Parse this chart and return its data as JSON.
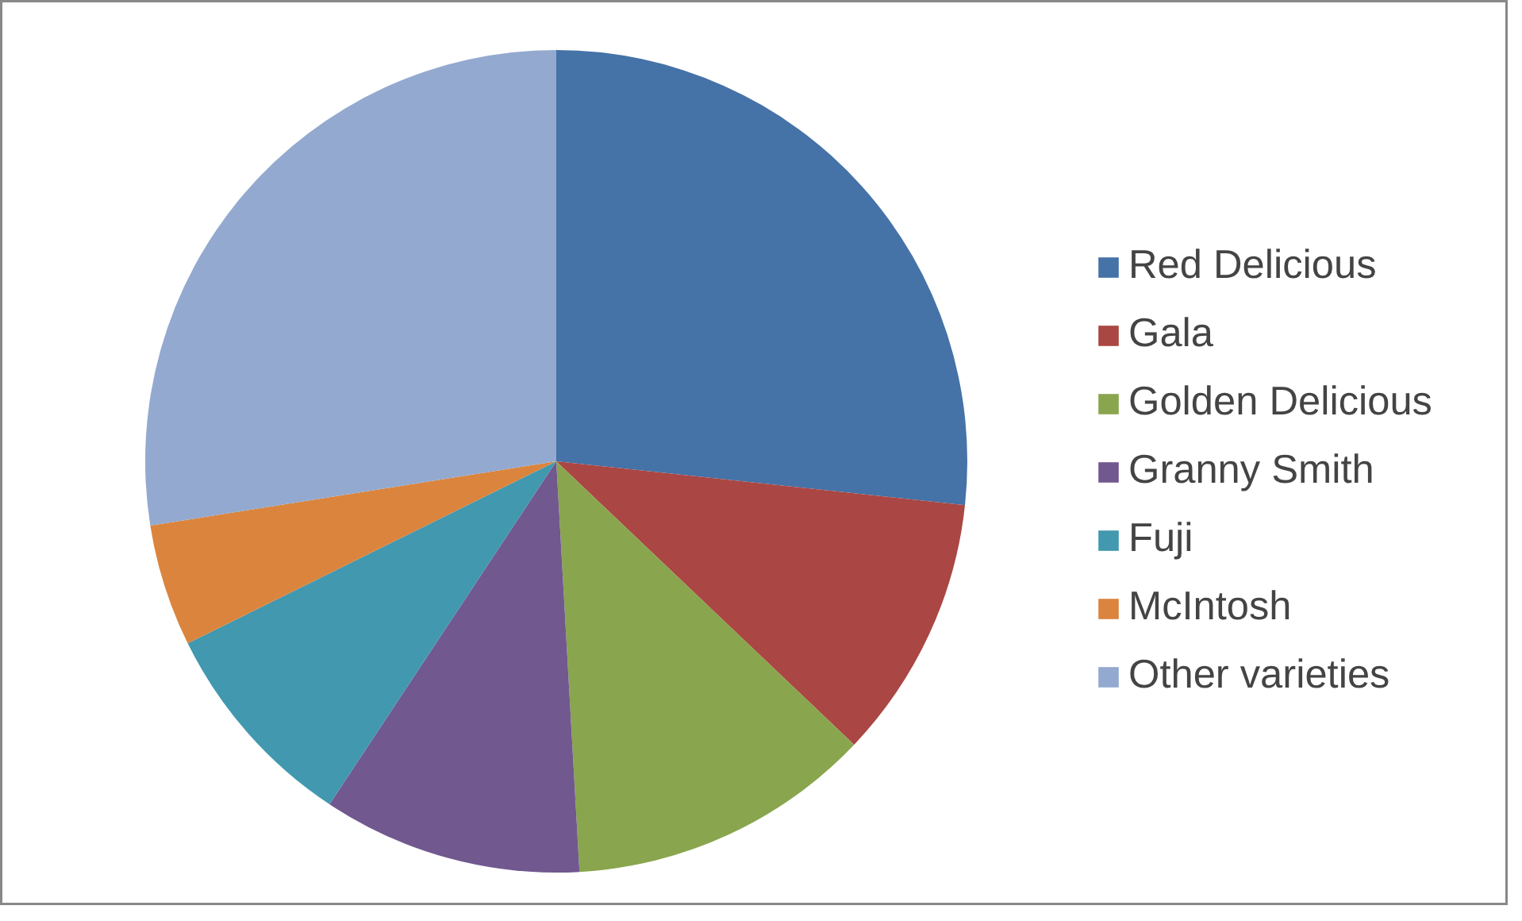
{
  "chart_data": {
    "type": "pie",
    "legend": "right",
    "categories": [
      "Red Delicious",
      "Gala",
      "Golden Delicious",
      "Granny Smith",
      "Fuji",
      "McIntosh",
      "Other varieties"
    ],
    "values": [
      26.7,
      10.4,
      12.0,
      10.2,
      8.4,
      4.8,
      27.5
    ],
    "colors": [
      "#4572a7",
      "#aa4643",
      "#89a54e",
      "#71588f",
      "#4198af",
      "#db843d",
      "#93a9cf"
    ]
  }
}
